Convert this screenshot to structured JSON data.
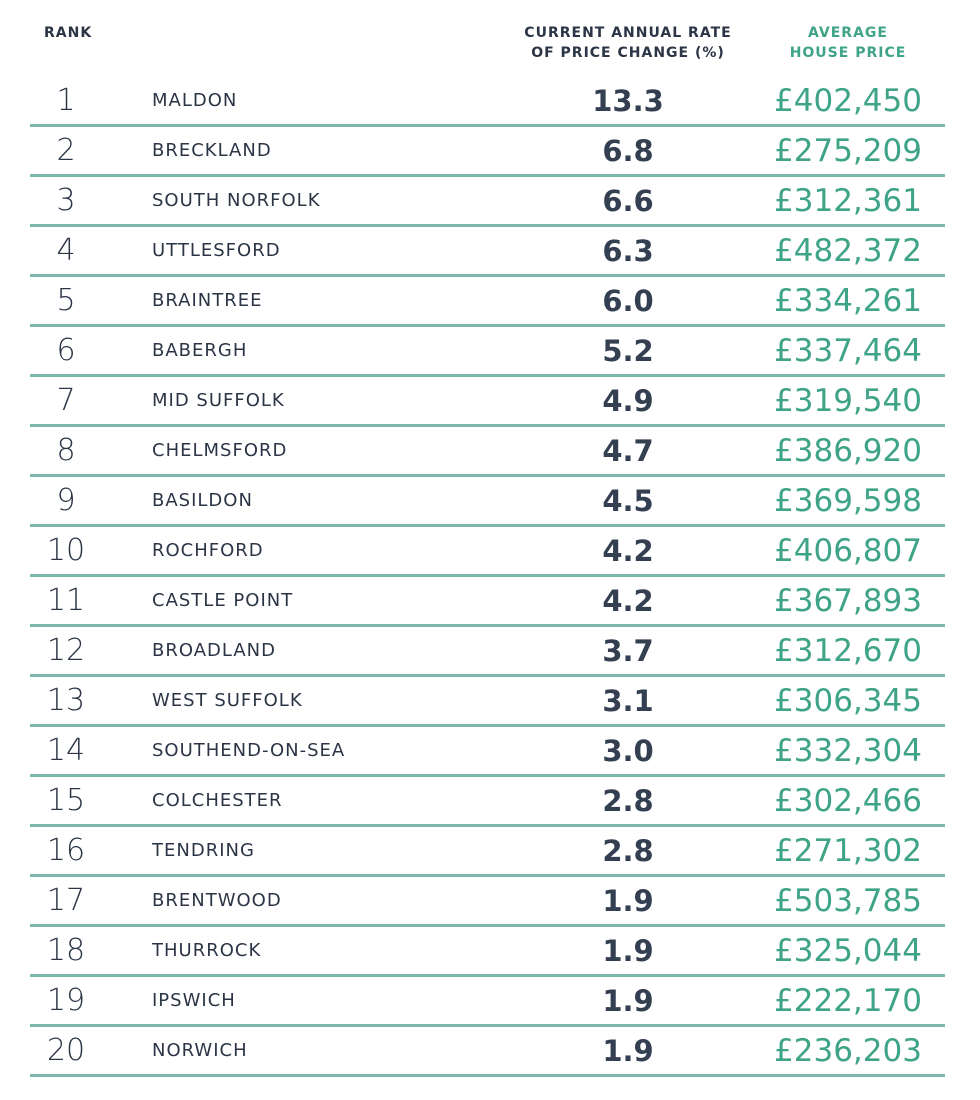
{
  "table": {
    "header": {
      "rank": "RANK",
      "rate": [
        "CURRENT ANNUAL RATE",
        "OF PRICE CHANGE (%)"
      ],
      "price": [
        "AVERAGE",
        "HOUSE PRICE"
      ]
    },
    "rows": [
      [
        "1",
        "MALDON",
        "13.3",
        "£402,450"
      ],
      [
        "2",
        "BRECKLAND",
        "6.8",
        "£275,209"
      ],
      [
        "3",
        "SOUTH NORFOLK",
        "6.6",
        "£312,361"
      ],
      [
        "4",
        "UTTLESFORD",
        "6.3",
        "£482,372"
      ],
      [
        "5",
        "BRAINTREE",
        "6.0",
        "£334,261"
      ],
      [
        "6",
        "BABERGH",
        "5.2",
        "£337,464"
      ],
      [
        "7",
        "MID SUFFOLK",
        "4.9",
        "£319,540"
      ],
      [
        "8",
        "CHELMSFORD",
        "4.7",
        "£386,920"
      ],
      [
        "9",
        "BASILDON",
        "4.5",
        "£369,598"
      ],
      [
        "10",
        "ROCHFORD",
        "4.2",
        "£406,807"
      ],
      [
        "11",
        "CASTLE POINT",
        "4.2",
        "£367,893"
      ],
      [
        "12",
        "BROADLAND",
        "3.7",
        "£312,670"
      ],
      [
        "13",
        "WEST SUFFOLK",
        "3.1",
        "£306,345"
      ],
      [
        "14",
        "SOUTHEND-ON-SEA",
        "3.0",
        "£332,304"
      ],
      [
        "15",
        "COLCHESTER",
        "2.8",
        "£302,466"
      ],
      [
        "16",
        "TENDRING",
        "2.8",
        "£271,302"
      ],
      [
        "17",
        "BRENTWOOD",
        "1.9",
        "£503,785"
      ],
      [
        "18",
        "THURROCK",
        "1.9",
        "£325,044"
      ],
      [
        "19",
        "IPSWICH",
        "1.9",
        "£222,170"
      ],
      [
        "20",
        "NORWICH",
        "1.9",
        "£236,203"
      ]
    ]
  }
}
